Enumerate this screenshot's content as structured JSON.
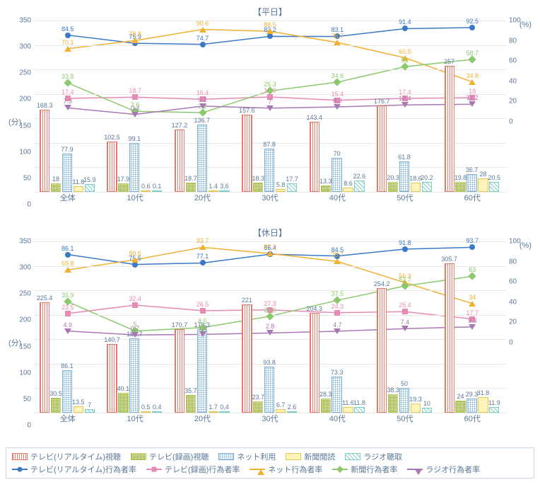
{
  "categories": [
    "全体",
    "10代",
    "20代",
    "30代",
    "40代",
    "50代",
    "60代"
  ],
  "bar_series": {
    "tv_rt": {
      "label": "テレビ(リアルタイム)視聴",
      "color": "#ffffff",
      "border": "#e57a6a",
      "pattern": "vline"
    },
    "tv_rec": {
      "label": "テレビ(録画)視聴",
      "color": "#ffffff",
      "border": "#b9cc66",
      "pattern": "hatch"
    },
    "net": {
      "label": "ネット利用",
      "color": "#ffffff",
      "border": "#7aaed6",
      "pattern": "dots"
    },
    "news": {
      "label": "新聞閲読",
      "color": "#fff4b8",
      "border": "#e0c95a",
      "pattern": ""
    },
    "radio": {
      "label": "ラジオ聴取",
      "color": "#ffffff",
      "border": "#7ad0c4",
      "pattern": "diag"
    }
  },
  "line_series": {
    "tv_rt_rate": {
      "label": "テレビ(リアルタイム)行為者率",
      "color": "#3c78c8",
      "marker": "circle"
    },
    "tv_rec_rate": {
      "label": "テレビ(録画)行為者率",
      "color": "#e88ab4",
      "marker": "square"
    },
    "net_rate": {
      "label": "ネット行為者率",
      "color": "#f0b030",
      "marker": "triangle"
    },
    "news_rate": {
      "label": "新聞行為者率",
      "color": "#8cc86e",
      "marker": "diamond"
    },
    "radio_rate": {
      "label": "ラジオ行為者率",
      "color": "#a878b4",
      "marker": "tridown"
    }
  },
  "panels": [
    {
      "title": "【平日】",
      "bars": {
        "tv_rt": [
          168.3,
          102.5,
          127.2,
          157.6,
          143.4,
          176.7,
          257.0
        ],
        "tv_rec": [
          18.0,
          17.9,
          18.7,
          18.3,
          13.3,
          20.3,
          19.8
        ],
        "net": [
          77.9,
          99.1,
          136.7,
          87.8,
          70.0,
          61.8,
          36.7
        ],
        "news": [
          11.8,
          0.6,
          1.4,
          5.8,
          8.6,
          18.6,
          28.0
        ],
        "radio": [
          15.9,
          0.1,
          3.6,
          17.7,
          22.6,
          20.2,
          20.5
        ]
      },
      "y_left_max": 350,
      "y_left_step": 50,
      "lines": {
        "tv_rt_rate": [
          84.5,
          75.9,
          74.7,
          83.2,
          83.1,
          91.4,
          92.5
        ],
        "tv_rec_rate": [
          17.4,
          18.7,
          16.4,
          18.9,
          15.4,
          17.4,
          18.0
        ],
        "net_rate": [
          70.1,
          78.8,
          90.6,
          88.5,
          76.7,
          60.5,
          34.8
        ],
        "news_rate": [
          33.8,
          3.6,
          2.2,
          25.3,
          34.6,
          51.0,
          58.7
        ],
        "radio_rate": [
          7.3,
          0.4,
          9.2,
          7.0,
          8.3,
          10.4,
          11.2
        ]
      },
      "y_right_max": 100
    },
    {
      "title": "【休日】",
      "bars": {
        "tv_rt": [
          225.4,
          140.7,
          170.7,
          221.0,
          204.3,
          254.2,
          305.7
        ],
        "tv_rec": [
          30.5,
          40.1,
          35.7,
          23.7,
          28.3,
          38.3,
          24.0
        ],
        "net": [
          86.1,
          151.7,
          170.3,
          93.8,
          73.3,
          50.0,
          29.3
        ],
        "news": [
          13.5,
          0.5,
          1.7,
          6.7,
          11.6,
          19.3,
          31.8
        ],
        "radio": [
          7.0,
          0.4,
          0.4,
          2.6,
          11.8,
          10.0,
          11.9
        ]
      },
      "y_left_max": 350,
      "y_left_step": 50,
      "lines": {
        "tv_rt_rate": [
          86.1,
          75.5,
          77.1,
          86.4,
          84.5,
          91.8,
          93.7
        ],
        "tv_rec_rate": [
          23.5,
          32.4,
          26.5,
          27.3,
          24.3,
          25.4,
          17.7
        ],
        "net_rate": [
          69.8,
          80.6,
          93.7,
          87.1,
          78.7,
          56.3,
          34.0
        ],
        "news_rate": [
          35.9,
          5.0,
          8.5,
          20.6,
          37.5,
          52.7,
          63.0
        ],
        "radio_rate": [
          4.9,
          0.7,
          1.3,
          2.8,
          4.7,
          7.4,
          9.3
        ]
      },
      "y_right_max": 100
    }
  ],
  "axis_left_label": "(分)",
  "axis_right_label": "(%)"
}
